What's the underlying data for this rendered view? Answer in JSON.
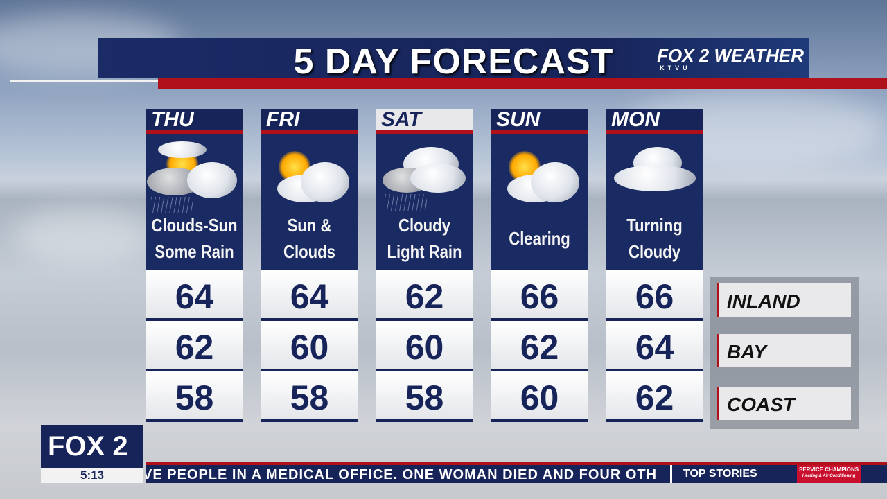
{
  "title": "5 DAY FORECAST",
  "brand": {
    "logo": "FOX 2 WEATHER",
    "logo_sub": "KTVU",
    "station_logo": "FOX 2"
  },
  "days": [
    {
      "day": "THU",
      "condition": [
        "Clouds-Sun",
        "Some Rain"
      ],
      "icon": "clouds-sun-rain-icon",
      "inland": "64",
      "bay": "62",
      "coast": "58"
    },
    {
      "day": "FRI",
      "condition": [
        "Sun &",
        "Clouds"
      ],
      "icon": "sun-clouds-icon",
      "inland": "64",
      "bay": "60",
      "coast": "58"
    },
    {
      "day": "SAT",
      "condition": [
        "Cloudy",
        "Light Rain"
      ],
      "icon": "cloudy-rain-icon",
      "inland": "62",
      "bay": "60",
      "coast": "58"
    },
    {
      "day": "SUN",
      "condition": [
        "Clearing"
      ],
      "icon": "sun-clouds-icon",
      "inland": "66",
      "bay": "62",
      "coast": "60"
    },
    {
      "day": "MON",
      "condition": [
        "Turning",
        "Cloudy"
      ],
      "icon": "cloudy-icon",
      "inland": "66",
      "bay": "64",
      "coast": "62"
    }
  ],
  "legend": [
    "INLAND",
    "BAY",
    "COAST"
  ],
  "clock": "5:13",
  "ticker": {
    "text": "VE PEOPLE IN A MEDICAL OFFICE. ONE WOMAN DIED AND FOUR OTH",
    "section": "TOP STORIES",
    "sponsor": "SERVICE CHAMPIONS",
    "sponsor_sub": "Heating & Air Conditioning"
  },
  "colors": {
    "navy": "#17245a",
    "red": "#b0101a"
  }
}
